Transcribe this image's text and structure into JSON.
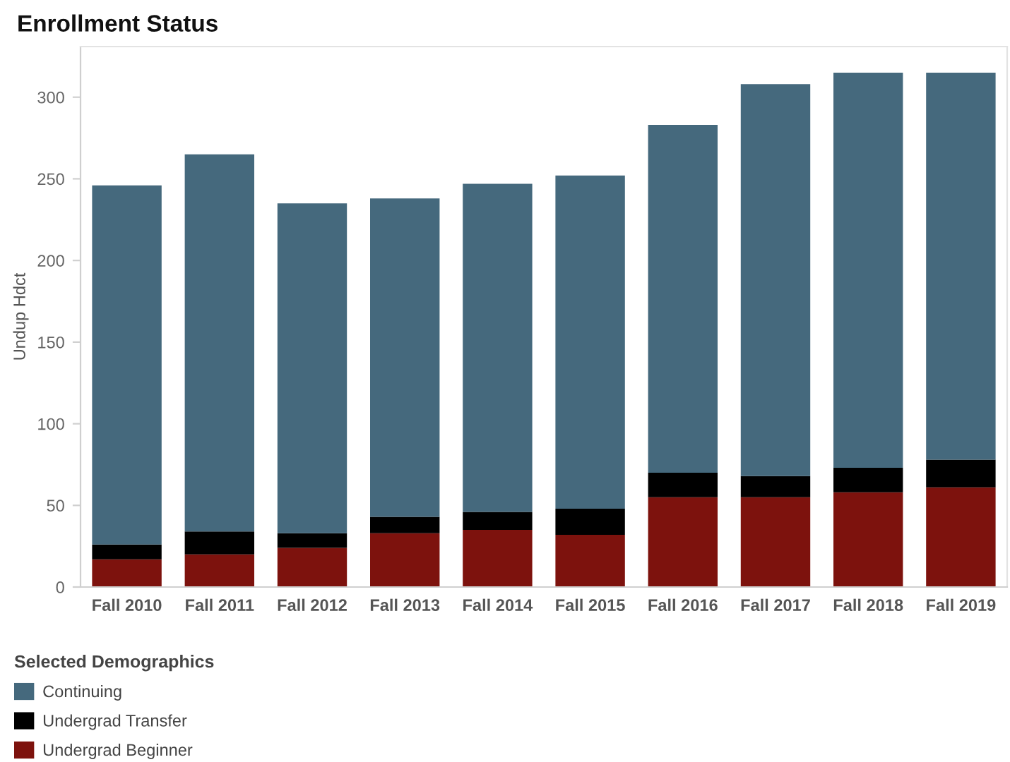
{
  "chart_data": {
    "type": "bar",
    "title": "Enrollment Status",
    "ylabel": "Undup Hdct",
    "legend_title": "Selected Demographics",
    "categories": [
      "Fall 2010",
      "Fall 2011",
      "Fall 2012",
      "Fall 2013",
      "Fall 2014",
      "Fall 2015",
      "Fall 2016",
      "Fall 2017",
      "Fall 2018",
      "Fall 2019"
    ],
    "stacked": true,
    "series": [
      {
        "name": "Undergrad Beginner",
        "color": "#7d120d",
        "values": [
          17,
          20,
          24,
          33,
          35,
          32,
          55,
          55,
          58,
          61
        ]
      },
      {
        "name": "Undergrad Transfer",
        "color": "#000000",
        "values": [
          9,
          14,
          9,
          10,
          11,
          16,
          15,
          13,
          15,
          17
        ]
      },
      {
        "name": "Continuing",
        "color": "#45697d",
        "values": [
          220,
          231,
          202,
          195,
          201,
          204,
          213,
          240,
          242,
          237
        ]
      }
    ],
    "ylim": [
      0,
      331
    ],
    "yticks": [
      0,
      50,
      100,
      150,
      200,
      250,
      300
    ],
    "legend": "bottom left"
  }
}
